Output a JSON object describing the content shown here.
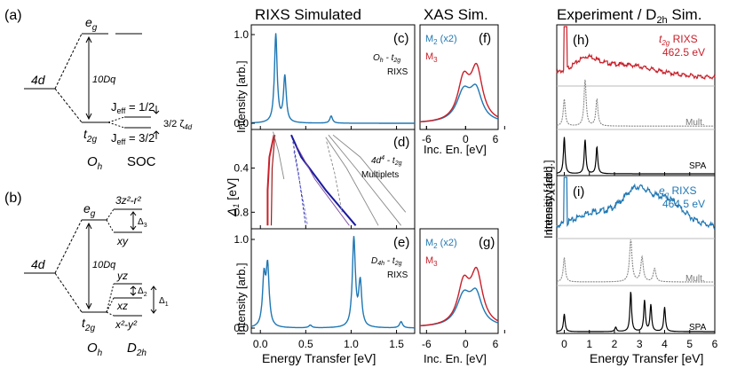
{
  "panel_labels": {
    "a": "(a)",
    "b": "(b)",
    "c": "(c)",
    "d": "(d)",
    "e": "(e)",
    "f": "(f)",
    "g": "(g)",
    "h": "(h)",
    "i": "(i)"
  },
  "headers": {
    "rixs": "RIXS Simulated",
    "xas": "XAS Sim.",
    "exp": "Experiment / D",
    "exp_sub": "2h",
    "exp_tail": " Sim."
  },
  "diagram_a": {
    "orbital": "4d",
    "eg": "e",
    "eg_sub": "g",
    "t2g": "t",
    "t2g_sub": "2g",
    "tenDq": "10Dq",
    "jeff_top": "J",
    "jeff_top_sub": "eff",
    "jeff_top_val": " = 1/2",
    "jeff_bot": "J",
    "jeff_bot_sub": "eff",
    "jeff_bot_val": " = 3/2",
    "zeta": "3/2 ζ",
    "zeta_sub": "4d",
    "oh": "O",
    "oh_sub": "h",
    "soc": "SOC"
  },
  "diagram_b": {
    "orbital": "4d",
    "eg": "e",
    "eg_sub": "g",
    "t2g": "t",
    "t2g_sub": "2g",
    "tenDq": "10Dq",
    "z2": "3z²-r²",
    "xy": "xy",
    "yz": "yz",
    "xz": "xz",
    "x2y2": "x²-y²",
    "d3": "Δ",
    "d3_sub": "3",
    "d2": "Δ",
    "d2_sub": "2",
    "d1": "Δ",
    "d1_sub": "1",
    "oh": "O",
    "oh_sub": "h",
    "d2h": "D",
    "d2h_sub": "2h"
  },
  "colors": {
    "blue": "#1f77b4",
    "red": "#c8202a",
    "gray": "#888888",
    "black": "#000000",
    "darkred": "#9b1b1b",
    "navy": "#1a1aa0"
  },
  "chart_data": [
    {
      "panel": "c",
      "type": "line",
      "title": "",
      "ylabel": "Intensity [arb.]",
      "ylim": [
        0,
        1.1
      ],
      "xlim": [
        -0.1,
        1.7
      ],
      "yticks": [
        "0.0",
        "1.0"
      ],
      "annot": {
        "l1": "O",
        "l1_sub": "h",
        "l1_mid": " - t",
        "l1_sub2": "2g",
        "l2": "RIXS"
      },
      "peaks": [
        [
          0.17,
          1.0
        ],
        [
          0.27,
          0.52
        ],
        [
          0.78,
          0.08
        ]
      ]
    },
    {
      "panel": "d",
      "type": "line",
      "ylabel": "Δ",
      "ylabel_sub": "1",
      "ylabel_unit": " [eV]",
      "ylim": [
        0.95,
        0.05
      ],
      "yticks": [
        "0.4",
        "0.8"
      ],
      "annot": {
        "l1": "4d",
        "l1_sup": "4",
        "l1_mid": " - t",
        "l1_sub": "2g",
        "l2": "Multiplets"
      }
    },
    {
      "panel": "e",
      "type": "line",
      "ylabel": "Intensity [arb.]",
      "xlabel": "Energy Transfer [eV]",
      "ylim": [
        0,
        1.1
      ],
      "xlim": [
        -0.1,
        1.7
      ],
      "yticks": [
        "0.0",
        "1.0"
      ],
      "xticks": [
        "0.0",
        "0.5",
        "1.0",
        "1.5"
      ],
      "annot": {
        "l1": "D",
        "l1_sub": "4h",
        "l1_mid": " - t",
        "l1_sub2": "2g",
        "l2": "RIXS"
      },
      "peaks": [
        [
          0.04,
          0.54
        ],
        [
          0.08,
          0.66
        ],
        [
          0.55,
          0.03
        ],
        [
          1.03,
          1.0
        ],
        [
          1.1,
          0.5
        ],
        [
          1.55,
          0.07
        ]
      ]
    },
    {
      "panel": "f",
      "type": "line",
      "xlim": [
        -7,
        5
      ],
      "legend": [
        "M",
        "M"
      ],
      "legend_sub": [
        "2",
        "3"
      ],
      "legend_tail": [
        " (x2)",
        ""
      ],
      "xticks": [
        "-6",
        "0",
        "6"
      ],
      "xlabel": "Inc. En. [eV]"
    },
    {
      "panel": "g",
      "type": "line",
      "xlim": [
        -7,
        5
      ],
      "legend": [
        "M",
        "M"
      ],
      "legend_sub": [
        "2",
        "3"
      ],
      "legend_tail": [
        " (x2)",
        ""
      ],
      "xticks": [
        "-6",
        "0",
        "6"
      ],
      "xlabel": "Inc. En. [eV]"
    },
    {
      "panel": "h",
      "type": "line",
      "ylabel": "Intensity [arb.]",
      "xlim": [
        -0.3,
        6
      ],
      "annot": {
        "l1": "t",
        "l1_sub": "2g",
        "l1_tail": " RIXS",
        "l2": "462.5 eV"
      },
      "series": [
        {
          "name": "Mult."
        },
        {
          "name": "SPA"
        }
      ]
    },
    {
      "panel": "i",
      "type": "line",
      "ylabel": "Intensity [arb.]",
      "xlabel": "Energy Transfer [eV]",
      "xlim": [
        -0.3,
        6
      ],
      "xticks": [
        "0",
        "1",
        "2",
        "3",
        "4",
        "5",
        "6"
      ],
      "annot": {
        "l1": "e",
        "l1_sub": "g",
        "l1_tail": " RIXS",
        "l2": "464.5 eV"
      },
      "series": [
        {
          "name": "Mult."
        },
        {
          "name": "SPA"
        }
      ]
    }
  ]
}
